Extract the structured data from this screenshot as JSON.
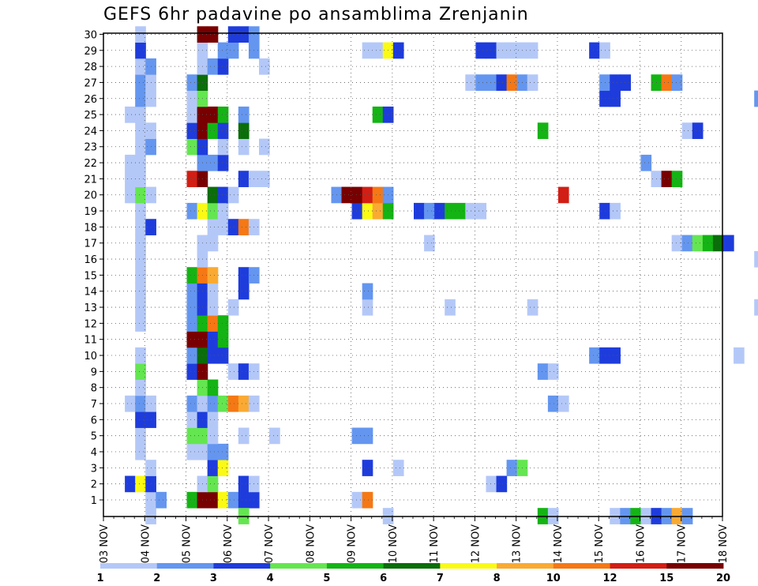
{
  "chart_data": {
    "type": "heatmap",
    "title": "GEFS 6hr padavine po ansamblima Zrenjanin",
    "xlabel": "",
    "ylabel": "",
    "x_ticks": [
      "03 NOV",
      "04 NOV",
      "05 NOV",
      "06 NOV",
      "07 NOV",
      "08 NOV",
      "09 NOV",
      "10 NOV",
      "11 NOV",
      "12 NOV",
      "13 NOV",
      "14 NOV",
      "15 NOV",
      "16 NOV",
      "17 NOV",
      "18 NOV"
    ],
    "y_ticks": [
      "1",
      "2",
      "3",
      "4",
      "5",
      "6",
      "7",
      "8",
      "9",
      "10",
      "11",
      "12",
      "13",
      "14",
      "15",
      "16",
      "17",
      "18",
      "19",
      "20",
      "21",
      "22",
      "23",
      "24",
      "25",
      "26",
      "27",
      "28",
      "29",
      "30"
    ],
    "grid": true,
    "legend": {
      "position": "bottom",
      "colors": [
        "#b4c8f8",
        "#6496f0",
        "#1e3cdc",
        "#64e650",
        "#14b414",
        "#0a6e0a",
        "#fafa14",
        "#faaa32",
        "#f57814",
        "#d21e14",
        "#780000"
      ],
      "labels": [
        "1",
        "2",
        "3",
        "4",
        "5",
        "6",
        "7",
        "8",
        "10",
        "12",
        "15",
        "20"
      ]
    },
    "series_note_levels": [
      1,
      2,
      3,
      4,
      5,
      6,
      7,
      8,
      10,
      12,
      15,
      20
    ],
    "cells": [
      [
        1,
        0,
        1
      ],
      [
        1,
        1,
        2
      ],
      [
        1,
        4,
        5
      ],
      [
        1,
        5,
        20
      ],
      [
        1,
        6,
        15
      ],
      [
        1,
        7,
        7
      ],
      [
        1,
        8,
        2
      ],
      [
        1,
        9,
        3
      ],
      [
        1,
        10,
        3
      ],
      [
        1,
        20,
        1
      ],
      [
        1,
        21,
        10
      ],
      [
        2,
        -2,
        3
      ],
      [
        2,
        -1,
        7
      ],
      [
        2,
        0,
        3
      ],
      [
        2,
        5,
        1
      ],
      [
        2,
        6,
        4
      ],
      [
        2,
        9,
        3
      ],
      [
        2,
        10,
        1
      ],
      [
        2,
        33,
        1
      ],
      [
        2,
        34,
        3
      ],
      [
        3,
        0,
        1
      ],
      [
        3,
        6,
        3
      ],
      [
        3,
        7,
        7
      ],
      [
        3,
        21,
        3
      ],
      [
        3,
        24,
        1
      ],
      [
        3,
        35,
        2
      ],
      [
        3,
        36,
        4
      ],
      [
        4,
        -1,
        1
      ],
      [
        4,
        4,
        1
      ],
      [
        4,
        5,
        1
      ],
      [
        4,
        6,
        2
      ],
      [
        4,
        7,
        2
      ],
      [
        5,
        -1,
        1
      ],
      [
        5,
        4,
        4
      ],
      [
        5,
        5,
        4
      ],
      [
        5,
        6,
        1
      ],
      [
        5,
        9,
        1
      ],
      [
        5,
        12,
        1
      ],
      [
        5,
        20,
        2
      ],
      [
        5,
        21,
        2
      ],
      [
        6,
        -1,
        3
      ],
      [
        6,
        0,
        3
      ],
      [
        6,
        4,
        1
      ],
      [
        6,
        5,
        3
      ],
      [
        6,
        6,
        1
      ],
      [
        7,
        -2,
        1
      ],
      [
        7,
        -1,
        2
      ],
      [
        7,
        0,
        1
      ],
      [
        7,
        4,
        2
      ],
      [
        7,
        5,
        1
      ],
      [
        7,
        6,
        2
      ],
      [
        7,
        7,
        4
      ],
      [
        7,
        8,
        10
      ],
      [
        7,
        9,
        8
      ],
      [
        7,
        10,
        1
      ],
      [
        7,
        39,
        2
      ],
      [
        7,
        40,
        1
      ],
      [
        8,
        -1,
        1
      ],
      [
        8,
        5,
        4
      ],
      [
        8,
        6,
        5
      ],
      [
        9,
        -1,
        4
      ],
      [
        9,
        4,
        3
      ],
      [
        9,
        5,
        15
      ],
      [
        9,
        8,
        1
      ],
      [
        9,
        9,
        3
      ],
      [
        9,
        10,
        1
      ],
      [
        9,
        38,
        2
      ],
      [
        9,
        39,
        1
      ],
      [
        10,
        -1,
        1
      ],
      [
        10,
        4,
        2
      ],
      [
        10,
        5,
        6
      ],
      [
        10,
        6,
        3
      ],
      [
        10,
        7,
        3
      ],
      [
        10,
        43,
        2
      ],
      [
        10,
        44,
        3
      ],
      [
        10,
        45,
        3
      ],
      [
        10,
        57,
        1
      ],
      [
        11,
        4,
        20
      ],
      [
        11,
        5,
        20
      ],
      [
        11,
        6,
        3
      ],
      [
        11,
        7,
        5
      ],
      [
        12,
        -1,
        1
      ],
      [
        12,
        4,
        2
      ],
      [
        12,
        5,
        5
      ],
      [
        12,
        6,
        10
      ],
      [
        12,
        7,
        5
      ],
      [
        13,
        -1,
        1
      ],
      [
        13,
        4,
        2
      ],
      [
        13,
        5,
        3
      ],
      [
        13,
        6,
        1
      ],
      [
        13,
        8,
        1
      ],
      [
        13,
        21,
        1
      ],
      [
        13,
        29,
        1
      ],
      [
        13,
        37,
        1
      ],
      [
        13,
        59,
        1
      ],
      [
        14,
        -1,
        1
      ],
      [
        14,
        4,
        2
      ],
      [
        14,
        5,
        3
      ],
      [
        14,
        6,
        1
      ],
      [
        14,
        9,
        3
      ],
      [
        14,
        21,
        2
      ],
      [
        15,
        -1,
        1
      ],
      [
        15,
        4,
        5
      ],
      [
        15,
        5,
        10
      ],
      [
        15,
        6,
        8
      ],
      [
        15,
        9,
        3
      ],
      [
        15,
        10,
        2
      ],
      [
        16,
        -1,
        1
      ],
      [
        16,
        5,
        1
      ],
      [
        16,
        59,
        1
      ],
      [
        17,
        -1,
        1
      ],
      [
        17,
        5,
        1
      ],
      [
        17,
        6,
        1
      ],
      [
        17,
        27,
        1
      ],
      [
        17,
        51,
        1
      ],
      [
        17,
        52,
        2
      ],
      [
        17,
        53,
        4
      ],
      [
        17,
        54,
        5
      ],
      [
        17,
        55,
        6
      ],
      [
        17,
        56,
        3
      ],
      [
        18,
        -1,
        1
      ],
      [
        18,
        0,
        3
      ],
      [
        18,
        6,
        1
      ],
      [
        18,
        7,
        1
      ],
      [
        18,
        8,
        3
      ],
      [
        18,
        9,
        10
      ],
      [
        18,
        10,
        1
      ],
      [
        19,
        -1,
        1
      ],
      [
        19,
        4,
        2
      ],
      [
        19,
        5,
        7
      ],
      [
        19,
        6,
        4
      ],
      [
        19,
        7,
        1
      ],
      [
        19,
        20,
        3
      ],
      [
        19,
        21,
        7
      ],
      [
        19,
        22,
        8
      ],
      [
        19,
        23,
        5
      ],
      [
        19,
        26,
        3
      ],
      [
        19,
        27,
        2
      ],
      [
        19,
        28,
        3
      ],
      [
        19,
        29,
        5
      ],
      [
        19,
        30,
        5
      ],
      [
        19,
        31,
        1
      ],
      [
        19,
        32,
        1
      ],
      [
        19,
        44,
        3
      ],
      [
        19,
        45,
        1
      ],
      [
        20,
        -2,
        1
      ],
      [
        20,
        -1,
        4
      ],
      [
        20,
        0,
        1
      ],
      [
        20,
        6,
        6
      ],
      [
        20,
        7,
        3
      ],
      [
        20,
        8,
        1
      ],
      [
        20,
        18,
        2
      ],
      [
        20,
        19,
        20
      ],
      [
        20,
        20,
        15
      ],
      [
        20,
        21,
        12
      ],
      [
        20,
        22,
        10
      ],
      [
        20,
        23,
        2
      ],
      [
        20,
        40,
        12
      ],
      [
        21,
        -2,
        1
      ],
      [
        21,
        -1,
        1
      ],
      [
        21,
        4,
        12
      ],
      [
        21,
        5,
        15
      ],
      [
        21,
        9,
        3
      ],
      [
        21,
        10,
        1
      ],
      [
        21,
        11,
        1
      ],
      [
        21,
        49,
        1
      ],
      [
        21,
        50,
        15
      ],
      [
        21,
        51,
        5
      ],
      [
        22,
        -2,
        1
      ],
      [
        22,
        -1,
        1
      ],
      [
        22,
        5,
        2
      ],
      [
        22,
        6,
        2
      ],
      [
        22,
        7,
        3
      ],
      [
        22,
        48,
        2
      ],
      [
        23,
        -1,
        1
      ],
      [
        23,
        0,
        2
      ],
      [
        23,
        4,
        4
      ],
      [
        23,
        5,
        3
      ],
      [
        23,
        7,
        1
      ],
      [
        23,
        9,
        1
      ],
      [
        23,
        11,
        1
      ],
      [
        24,
        -1,
        1
      ],
      [
        24,
        0,
        1
      ],
      [
        24,
        4,
        3
      ],
      [
        24,
        5,
        15
      ],
      [
        24,
        6,
        5
      ],
      [
        24,
        7,
        3
      ],
      [
        24,
        9,
        6
      ],
      [
        24,
        38,
        5
      ],
      [
        24,
        52,
        1
      ],
      [
        24,
        53,
        3
      ],
      [
        25,
        -2,
        1
      ],
      [
        25,
        -1,
        1
      ],
      [
        25,
        4,
        1
      ],
      [
        25,
        5,
        15
      ],
      [
        25,
        6,
        20
      ],
      [
        25,
        7,
        5
      ],
      [
        25,
        9,
        2
      ],
      [
        25,
        22,
        5
      ],
      [
        25,
        23,
        3
      ],
      [
        26,
        -1,
        2
      ],
      [
        26,
        0,
        1
      ],
      [
        26,
        4,
        1
      ],
      [
        26,
        5,
        4
      ],
      [
        26,
        44,
        3
      ],
      [
        26,
        45,
        3
      ],
      [
        26,
        59,
        2
      ],
      [
        26,
        60,
        1
      ],
      [
        27,
        -1,
        2
      ],
      [
        27,
        0,
        1
      ],
      [
        27,
        4,
        2
      ],
      [
        27,
        5,
        6
      ],
      [
        27,
        31,
        1
      ],
      [
        27,
        32,
        2
      ],
      [
        27,
        33,
        2
      ],
      [
        27,
        34,
        3
      ],
      [
        27,
        35,
        10
      ],
      [
        27,
        36,
        2
      ],
      [
        27,
        37,
        1
      ],
      [
        27,
        44,
        2
      ],
      [
        27,
        45,
        3
      ],
      [
        27,
        46,
        3
      ],
      [
        27,
        49,
        5
      ],
      [
        27,
        50,
        10
      ],
      [
        27,
        51,
        2
      ],
      [
        28,
        -1,
        1
      ],
      [
        28,
        0,
        2
      ],
      [
        28,
        5,
        1
      ],
      [
        28,
        6,
        2
      ],
      [
        28,
        7,
        3
      ],
      [
        28,
        11,
        1
      ],
      [
        29,
        -1,
        3
      ],
      [
        29,
        5,
        1
      ],
      [
        29,
        7,
        2
      ],
      [
        29,
        8,
        2
      ],
      [
        29,
        10,
        2
      ],
      [
        29,
        21,
        1
      ],
      [
        29,
        22,
        1
      ],
      [
        29,
        23,
        7
      ],
      [
        29,
        24,
        3
      ],
      [
        29,
        32,
        3
      ],
      [
        29,
        33,
        3
      ],
      [
        29,
        34,
        1
      ],
      [
        29,
        35,
        1
      ],
      [
        29,
        36,
        1
      ],
      [
        29,
        37,
        1
      ],
      [
        29,
        43,
        3
      ],
      [
        29,
        44,
        1
      ],
      [
        30,
        -1,
        1
      ],
      [
        30,
        5,
        20
      ],
      [
        30,
        6,
        20
      ],
      [
        30,
        8,
        3
      ],
      [
        30,
        9,
        3
      ],
      [
        30,
        10,
        2
      ],
      [
        0,
        0,
        1
      ],
      [
        0,
        9,
        4
      ],
      [
        0,
        23,
        1
      ],
      [
        0,
        38,
        5
      ],
      [
        0,
        39,
        1
      ],
      [
        0,
        45,
        1
      ],
      [
        0,
        46,
        2
      ],
      [
        0,
        47,
        5
      ],
      [
        0,
        48,
        1
      ],
      [
        0,
        49,
        3
      ],
      [
        0,
        50,
        2
      ],
      [
        0,
        51,
        8
      ],
      [
        0,
        52,
        2
      ]
    ]
  }
}
